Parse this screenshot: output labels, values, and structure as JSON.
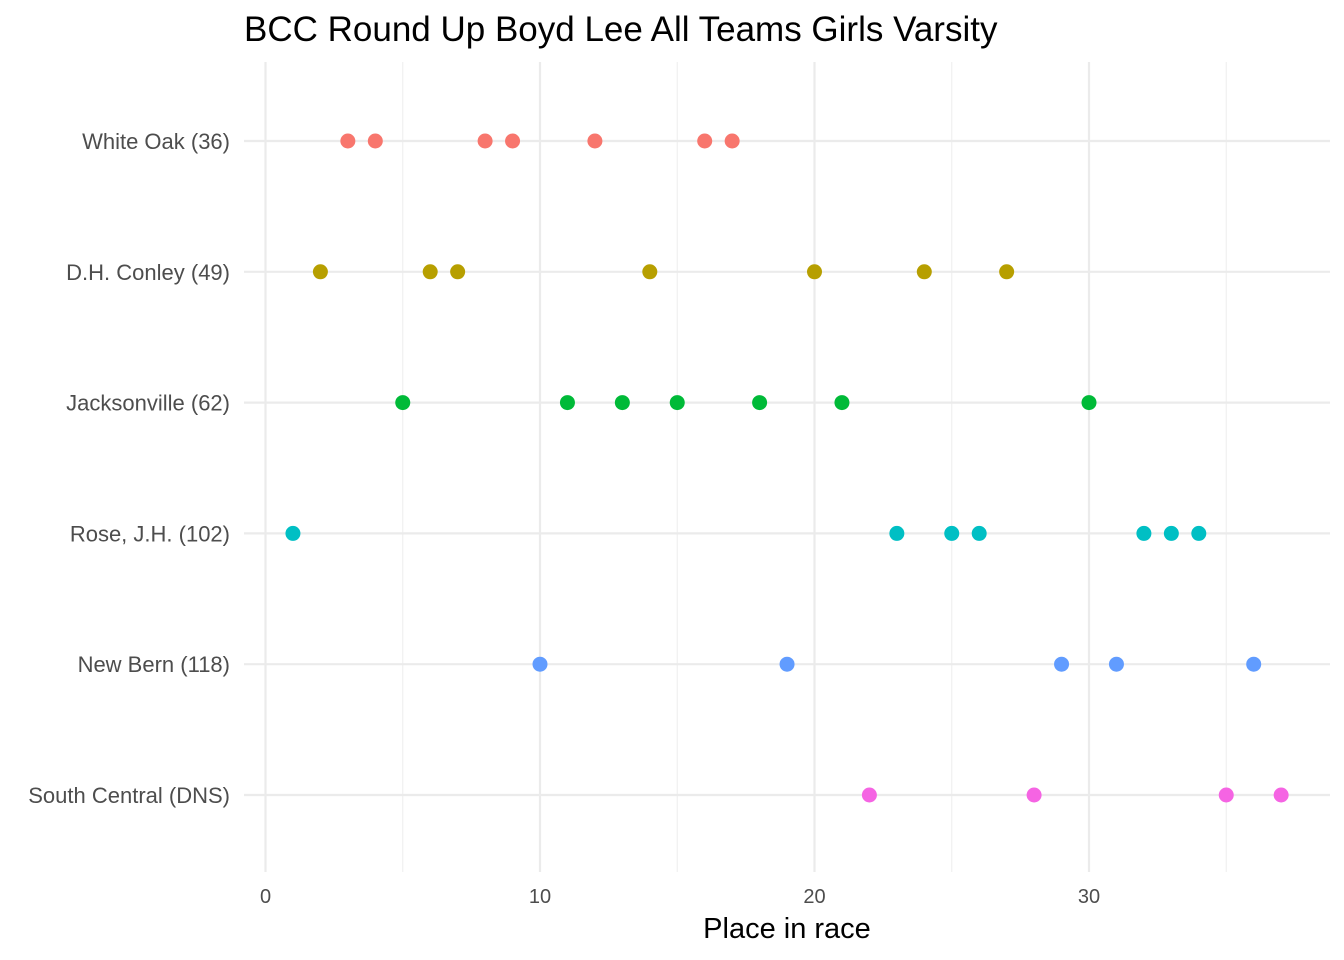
{
  "chart_data": {
    "type": "scatter",
    "title": "BCC Round Up Boyd Lee All Teams Girls Varsity",
    "xlabel": "Place in race",
    "ylabel": "",
    "xlim": [
      0,
      38
    ],
    "x_ticks": [
      0,
      10,
      20,
      30
    ],
    "x_tick_labels": [
      "0",
      "10",
      "20",
      "30"
    ],
    "grid": true,
    "legend": "none",
    "categories": [
      "White Oak (36)",
      "D.H. Conley (49)",
      "Jacksonville (62)",
      "Rose, J.H. (102)",
      "New Bern (118)",
      "South Central (DNS)"
    ],
    "series": [
      {
        "name": "White Oak (36)",
        "color": "#F8766D",
        "x": [
          3,
          4,
          8,
          9,
          12,
          16,
          17
        ]
      },
      {
        "name": "D.H. Conley (49)",
        "color": "#B79F00",
        "x": [
          2,
          6,
          7,
          14,
          20,
          24,
          27
        ]
      },
      {
        "name": "Jacksonville (62)",
        "color": "#00BA38",
        "x": [
          5,
          11,
          13,
          15,
          18,
          21,
          30
        ]
      },
      {
        "name": "Rose, J.H. (102)",
        "color": "#00BFC4",
        "x": [
          1,
          23,
          25,
          26,
          32,
          33,
          34
        ]
      },
      {
        "name": "New Bern (118)",
        "color": "#619CFF",
        "x": [
          10,
          19,
          29,
          31,
          36
        ]
      },
      {
        "name": "South Central (DNS)",
        "color": "#F564E3",
        "x": [
          22,
          28,
          35,
          37
        ]
      }
    ]
  }
}
